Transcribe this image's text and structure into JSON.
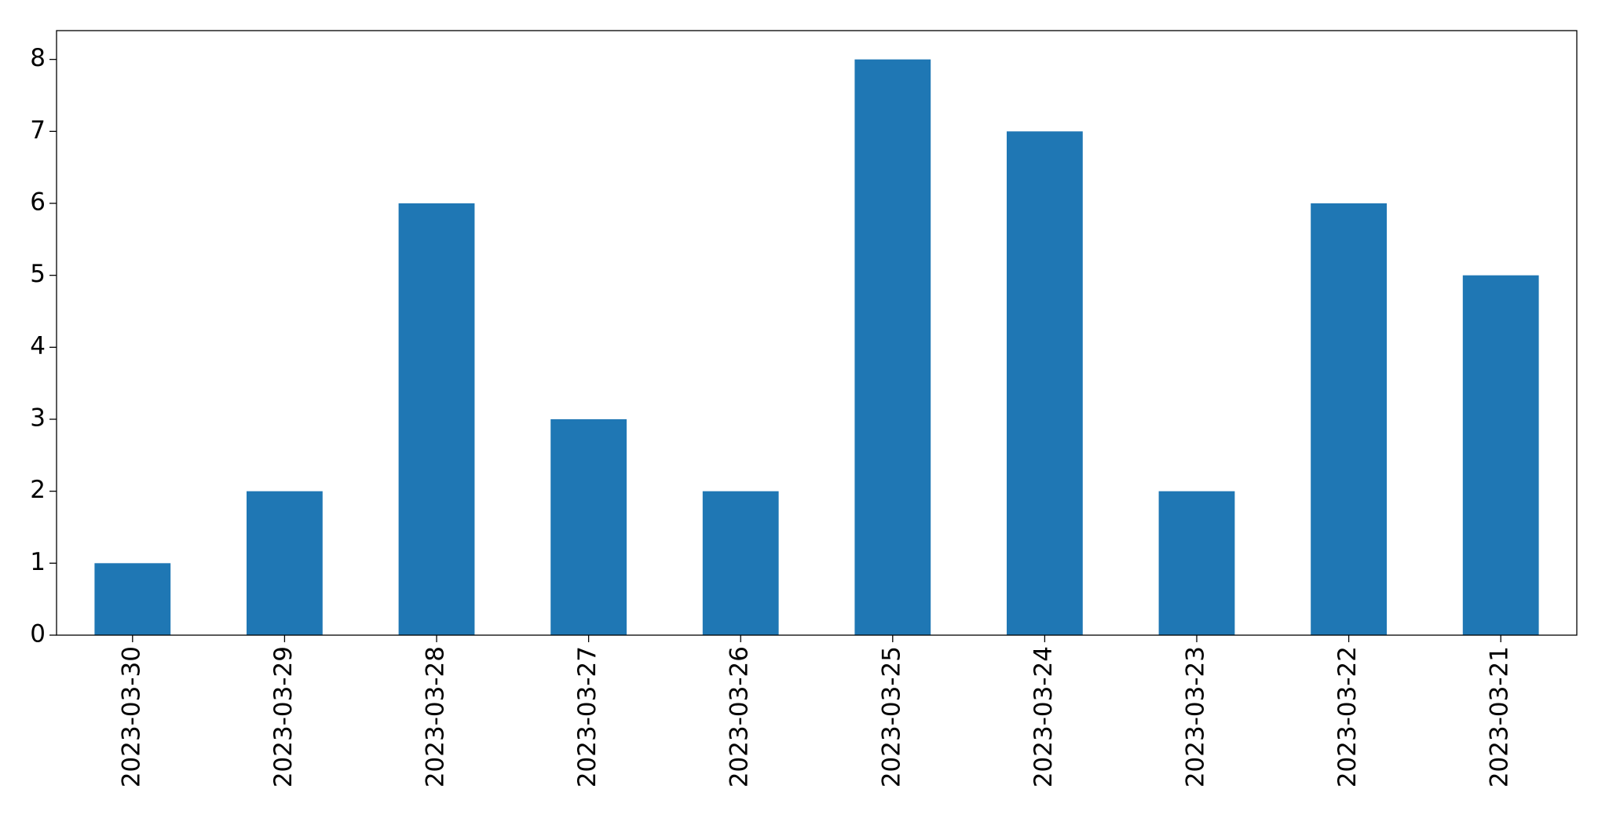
{
  "chart_data": {
    "type": "bar",
    "categories": [
      "2023-03-30",
      "2023-03-29",
      "2023-03-28",
      "2023-03-27",
      "2023-03-26",
      "2023-03-25",
      "2023-03-24",
      "2023-03-23",
      "2023-03-22",
      "2023-03-21"
    ],
    "values": [
      1,
      2,
      6,
      3,
      2,
      8,
      7,
      2,
      6,
      5
    ],
    "color": "#1f77b4",
    "ylim": [
      0,
      8.4
    ],
    "yticks": [
      0,
      1,
      2,
      3,
      4,
      5,
      6,
      7,
      8
    ],
    "grid": false
  }
}
